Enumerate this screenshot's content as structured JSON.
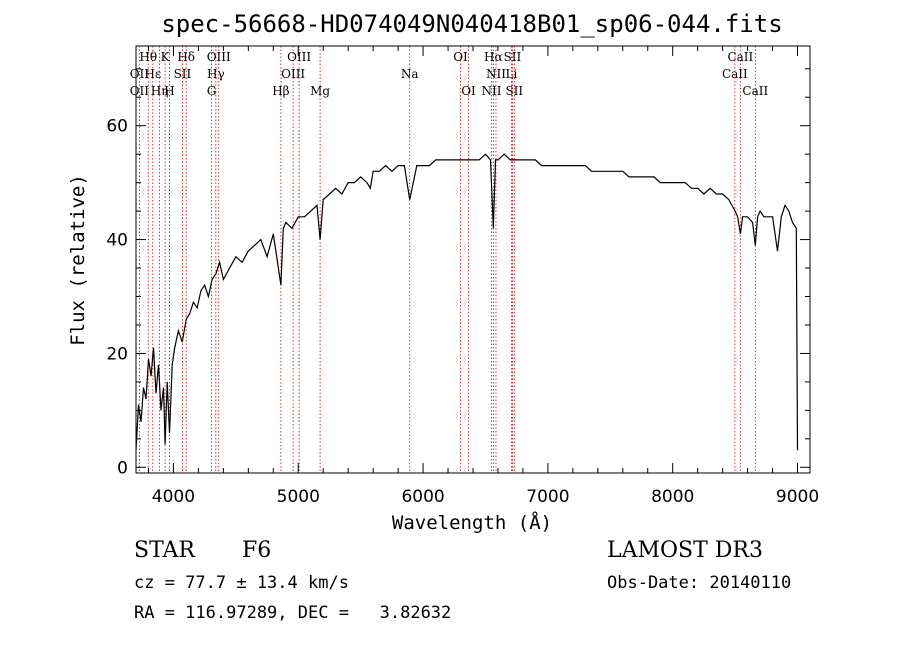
{
  "chart_data": {
    "type": "line",
    "title": "spec-56668-HD074049N040418B01_sp06-044.fits",
    "xlabel": "Wavelength (Å)",
    "ylabel": "Flux (relative)",
    "xlim": [
      3700,
      9100
    ],
    "ylim": [
      -1,
      74
    ],
    "xticks": [
      4000,
      5000,
      6000,
      7000,
      8000,
      9000
    ],
    "yticks": [
      0,
      20,
      40,
      60
    ],
    "series": [
      {
        "name": "flux",
        "x": [
          3700,
          3720,
          3740,
          3760,
          3780,
          3800,
          3820,
          3840,
          3860,
          3880,
          3900,
          3920,
          3933,
          3950,
          3968,
          3990,
          4010,
          4040,
          4070,
          4102,
          4130,
          4160,
          4190,
          4220,
          4250,
          4280,
          4310,
          4340,
          4370,
          4400,
          4450,
          4500,
          4550,
          4600,
          4650,
          4700,
          4750,
          4800,
          4861,
          4880,
          4900,
          4950,
          5000,
          5050,
          5100,
          5150,
          5175,
          5200,
          5250,
          5300,
          5350,
          5400,
          5450,
          5500,
          5550,
          5577,
          5600,
          5650,
          5700,
          5750,
          5800,
          5850,
          5893,
          5950,
          6000,
          6050,
          6100,
          6150,
          6200,
          6250,
          6300,
          6350,
          6400,
          6450,
          6500,
          6540,
          6563,
          6580,
          6600,
          6650,
          6700,
          6750,
          6800,
          6850,
          6900,
          6950,
          7000,
          7050,
          7100,
          7150,
          7200,
          7250,
          7300,
          7350,
          7400,
          7450,
          7500,
          7550,
          7600,
          7650,
          7700,
          7750,
          7800,
          7850,
          7900,
          7950,
          8000,
          8050,
          8100,
          8150,
          8200,
          8250,
          8300,
          8350,
          8400,
          8450,
          8500,
          8520,
          8542,
          8560,
          8600,
          8640,
          8662,
          8680,
          8700,
          8730,
          8760,
          8800,
          8840,
          8870,
          8900,
          8930,
          8960,
          8990,
          9000
        ],
        "values": [
          3,
          11,
          8,
          14,
          12,
          19,
          16,
          21,
          13,
          18,
          10,
          14,
          4,
          15,
          6,
          18,
          21,
          24,
          22,
          26,
          27,
          29,
          28,
          31,
          32,
          30,
          33,
          34,
          36,
          33,
          35,
          37,
          36,
          38,
          39,
          40,
          37,
          41,
          32,
          42,
          43,
          42,
          44,
          44,
          45,
          46,
          40,
          47,
          48,
          49,
          48,
          50,
          50,
          51,
          50,
          49,
          52,
          52,
          53,
          52,
          53,
          53,
          47,
          53,
          53,
          53,
          54,
          54,
          54,
          54,
          54,
          54,
          54,
          54,
          55,
          54,
          42,
          54,
          54,
          55,
          54,
          54,
          54,
          54,
          54,
          53,
          53,
          53,
          53,
          53,
          53,
          53,
          53,
          52,
          52,
          52,
          52,
          52,
          52,
          51,
          51,
          51,
          51,
          51,
          50,
          50,
          50,
          50,
          50,
          49,
          49,
          48,
          49,
          48,
          48,
          47,
          45,
          44,
          41,
          44,
          44,
          43,
          39,
          44,
          45,
          44,
          44,
          44,
          38,
          44,
          46,
          45,
          43,
          42,
          3
        ]
      }
    ],
    "spectral_lines": [
      {
        "label": "Hθ",
        "wavelength": 3798,
        "row": 1
      },
      {
        "label": "OII",
        "wavelength": 3727,
        "row": 2
      },
      {
        "label": "OII",
        "wavelength": 3727,
        "row": 3
      },
      {
        "label": "Hε",
        "wavelength": 3835,
        "row": 2
      },
      {
        "label": "Hη",
        "wavelength": 3889,
        "row": 3
      },
      {
        "label": "K",
        "wavelength": 3933,
        "row": 1
      },
      {
        "label": "SII",
        "wavelength": 4072,
        "row": 2
      },
      {
        "label": "H",
        "wavelength": 3968,
        "row": 3
      },
      {
        "label": "Hδ",
        "wavelength": 4102,
        "row": 1
      },
      {
        "label": "OIII",
        "wavelength": 4363,
        "row": 1
      },
      {
        "label": "Hγ",
        "wavelength": 4340,
        "row": 2
      },
      {
        "label": "G",
        "wavelength": 4305,
        "row": 3
      },
      {
        "label": "OIII",
        "wavelength": 5007,
        "row": 1
      },
      {
        "label": "OIII",
        "wavelength": 4959,
        "row": 2
      },
      {
        "label": "Hβ",
        "wavelength": 4861,
        "row": 3
      },
      {
        "label": "Mg",
        "wavelength": 5175,
        "row": 3
      },
      {
        "label": "Na",
        "wavelength": 5893,
        "row": 2
      },
      {
        "label": "OI",
        "wavelength": 6300,
        "row": 1
      },
      {
        "label": "OI",
        "wavelength": 6364,
        "row": 3
      },
      {
        "label": "Hα",
        "wavelength": 6563,
        "row": 1
      },
      {
        "label": "SII",
        "wavelength": 6716,
        "row": 1
      },
      {
        "label": "NII",
        "wavelength": 6584,
        "row": 2
      },
      {
        "label": "Li",
        "wavelength": 6708,
        "row": 2
      },
      {
        "label": "NII",
        "wavelength": 6548,
        "row": 3
      },
      {
        "label": "SII",
        "wavelength": 6731,
        "row": 3
      },
      {
        "label": "CaII",
        "wavelength": 8542,
        "row": 1
      },
      {
        "label": "CaII",
        "wavelength": 8498,
        "row": 2
      },
      {
        "label": "CaII",
        "wavelength": 8662,
        "row": 3
      }
    ],
    "line_marker_color": "#cc0000",
    "line_marker_wavelengths": [
      3727,
      3798,
      3835,
      3889,
      3933,
      3968,
      4072,
      4102,
      4305,
      4340,
      4363,
      4861,
      4959,
      5007,
      5175,
      5893,
      6300,
      6364,
      6548,
      6563,
      6584,
      6708,
      6716,
      6731,
      8498,
      8542,
      8662
    ]
  },
  "info": {
    "class": "STAR",
    "subclass": "F6",
    "survey": "LAMOST DR3",
    "cz": "cz = 77.7 ± 13.4 km/s",
    "obs_date": "Obs-Date: 20140110",
    "coords": "RA = 116.97289, DEC =   3.82632"
  }
}
